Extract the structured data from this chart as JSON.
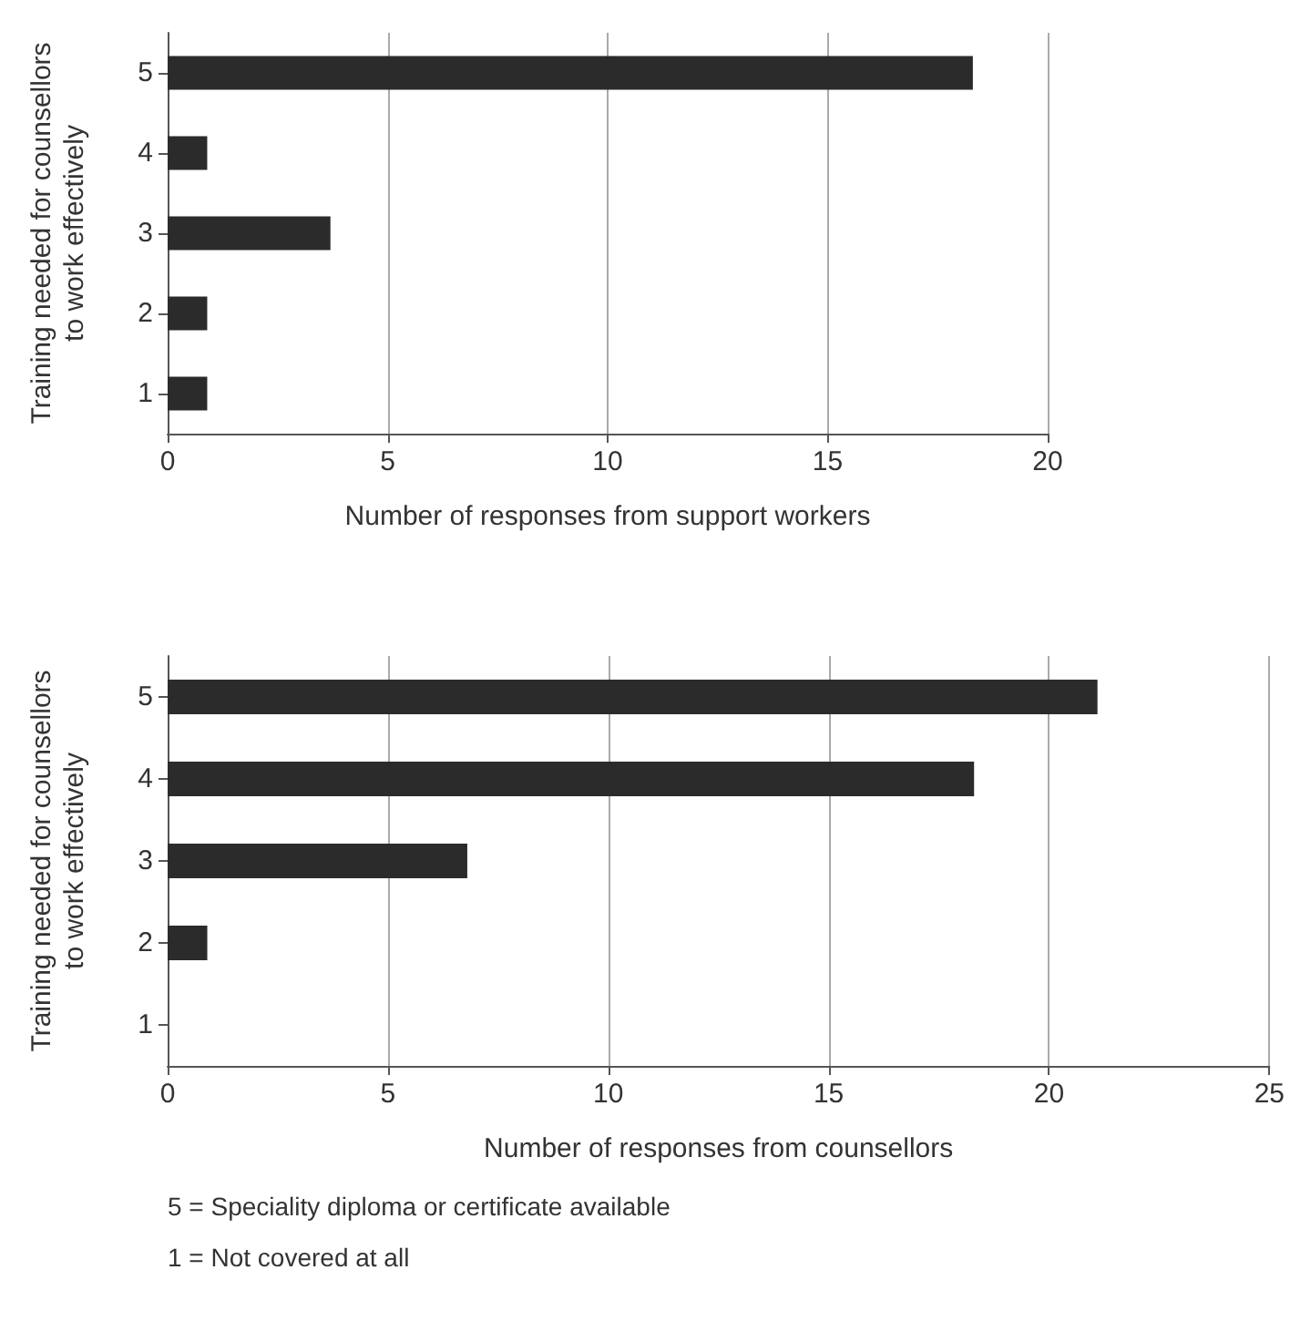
{
  "chart_data": [
    {
      "type": "bar",
      "orientation": "horizontal",
      "categories": [
        "5",
        "4",
        "3",
        "2",
        "1"
      ],
      "values": [
        18.3,
        0.9,
        3.7,
        0.9,
        0.9
      ],
      "color": "#2b2b2b",
      "xlabel": "Number of responses from support workers",
      "ylabel": "Training needed for counsellors\nto work effectively",
      "xlim": [
        0,
        20
      ],
      "xticks": [
        0,
        5,
        10,
        15,
        20
      ],
      "grid": "x"
    },
    {
      "type": "bar",
      "orientation": "horizontal",
      "categories": [
        "5",
        "4",
        "3",
        "2",
        "1"
      ],
      "values": [
        21.1,
        18.3,
        6.8,
        0.9,
        0
      ],
      "color": "#2b2b2b",
      "xlabel": "Number of responses from counsellors",
      "ylabel": "Training needed for counsellors\nto work effectively",
      "xlim": [
        0,
        25
      ],
      "xticks": [
        0,
        5,
        10,
        15,
        20,
        25
      ],
      "grid": "x",
      "annotations": [
        "5 = Speciality diploma or certificate available",
        "1 = Not covered at all"
      ]
    }
  ]
}
